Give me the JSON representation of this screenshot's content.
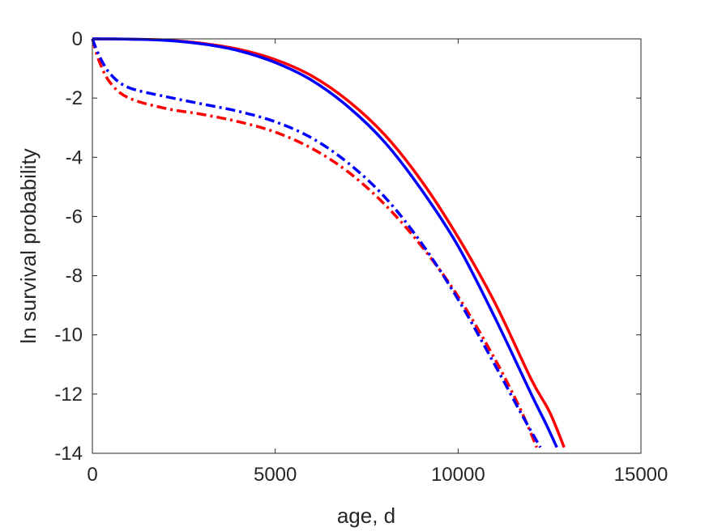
{
  "chart_data": {
    "type": "line",
    "xlabel": "age, d",
    "ylabel": "ln survival probability",
    "xlim": [
      0,
      15000
    ],
    "ylim": [
      -14,
      0
    ],
    "xticks": [
      0,
      5000,
      10000,
      15000
    ],
    "yticks": [
      0,
      -2,
      -4,
      -6,
      -8,
      -10,
      -12,
      -14
    ],
    "xtick_labels": [
      "0",
      "5000",
      "10000",
      "15000"
    ],
    "ytick_labels": [
      "0",
      "-2",
      "-4",
      "-6",
      "-8",
      "-10",
      "-12",
      "-14"
    ],
    "grid": false,
    "legend": "none",
    "series": [
      {
        "color": "#ff0000",
        "style": "solid",
        "x": [
          0,
          1000,
          2000,
          3000,
          4000,
          5000,
          6000,
          7000,
          8000,
          9000,
          10000,
          11000,
          12000,
          12500,
          12900
        ],
        "y": [
          0,
          -0.01,
          -0.04,
          -0.15,
          -0.35,
          -0.7,
          -1.25,
          -2.1,
          -3.25,
          -4.8,
          -6.7,
          -8.9,
          -11.5,
          -12.6,
          -13.8
        ]
      },
      {
        "color": "#0000ff",
        "style": "solid",
        "x": [
          0,
          1000,
          2000,
          3000,
          4000,
          5000,
          6000,
          7000,
          8000,
          9000,
          10000,
          11000,
          12000,
          12400,
          12700
        ],
        "y": [
          0,
          -0.01,
          -0.05,
          -0.17,
          -0.4,
          -0.8,
          -1.4,
          -2.3,
          -3.5,
          -5.1,
          -7.0,
          -9.4,
          -12.0,
          -13.0,
          -13.8
        ]
      },
      {
        "color": "#ff0000",
        "style": "dashdot",
        "x": [
          0,
          200,
          500,
          1000,
          2000,
          3000,
          4000,
          5000,
          6000,
          7000,
          8000,
          9000,
          10000,
          11000,
          11700,
          12150
        ],
        "y": [
          0,
          -0.8,
          -1.5,
          -2.0,
          -2.35,
          -2.55,
          -2.8,
          -3.15,
          -3.7,
          -4.5,
          -5.6,
          -7.0,
          -8.7,
          -10.8,
          -12.5,
          -13.8
        ]
      },
      {
        "color": "#0000ff",
        "style": "dashdot",
        "x": [
          0,
          200,
          500,
          1000,
          2000,
          3000,
          4000,
          5000,
          6000,
          7000,
          8000,
          9000,
          10000,
          11000,
          11700,
          12250
        ],
        "y": [
          0,
          -0.6,
          -1.2,
          -1.65,
          -1.95,
          -2.2,
          -2.45,
          -2.8,
          -3.35,
          -4.2,
          -5.35,
          -6.9,
          -8.8,
          -11.0,
          -12.6,
          -13.8
        ]
      }
    ]
  }
}
